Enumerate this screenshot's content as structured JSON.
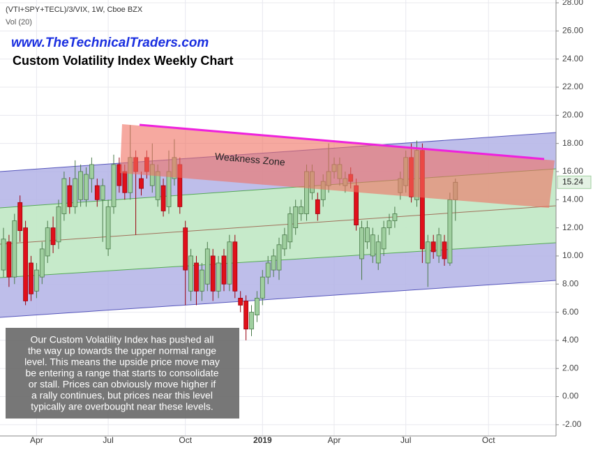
{
  "chart_data": {
    "type": "candlestick",
    "header": "(VTI+SPY+TECL)/3/VIX, 1W, Cboe BZX",
    "volume_label": "Vol (20)",
    "website": "www.TheTechnicalTraders.com",
    "title": "Custom Volatility Index Weekly Chart",
    "zone_label": "Weakness Zone",
    "note": [
      "Our Custom Volatility Index has pushed all",
      "the way up towards the upper normal range",
      "level.  This means the upside price move may",
      "be entering a range that starts to consolidate",
      "or stall.  Prices can obviously move higher if",
      "a rally continues, but prices near this level",
      "typically are overbought near these levels."
    ],
    "categories": [
      null,
      null,
      null,
      null,
      null,
      null,
      "Apr",
      null,
      null,
      null,
      null,
      null,
      null,
      null,
      null,
      null,
      null,
      null,
      null,
      "Jul",
      null,
      null,
      null,
      null,
      null,
      null,
      null,
      null,
      null,
      null,
      null,
      null,
      null,
      "Oct",
      null,
      null,
      null,
      null,
      null,
      null,
      null,
      null,
      null,
      null,
      null,
      null,
      null,
      "2019",
      null,
      null,
      null,
      null,
      null,
      null,
      null,
      null,
      null,
      null,
      null,
      null,
      "Apr",
      null,
      null,
      null,
      null,
      null,
      null,
      null,
      null,
      null,
      null,
      null,
      null,
      "Jul",
      null,
      null,
      null,
      null,
      null,
      null,
      null,
      null,
      null,
      null,
      null,
      null,
      null,
      null,
      "Oct"
    ],
    "series": {
      "open": [
        9,
        11,
        8.5,
        13.8,
        12,
        9.5,
        7.5,
        8.5,
        10,
        12,
        11,
        13,
        15,
        13.5,
        14,
        14,
        15.5,
        15,
        14,
        10.5,
        13.5,
        16.5,
        16,
        14.5,
        17,
        15.5,
        17,
        15,
        14,
        15,
        13.5,
        15.5,
        16.5,
        12,
        7.5,
        9.5,
        7.5,
        8,
        10,
        7.5,
        10,
        8,
        11,
        7,
        6.8,
        4.8,
        5.8,
        7,
        8.5,
        9,
        9,
        10.5,
        11,
        12,
        13,
        13,
        14.5,
        14,
        14,
        15,
        16,
        15.5,
        15,
        15.8,
        15,
        9.8,
        11,
        10,
        9.5,
        10.5,
        12,
        12.5,
        14.5,
        15,
        17,
        14,
        17.5,
        9.5,
        11,
        10,
        11,
        9.5,
        14,
        null,
        null,
        null,
        null,
        null,
        null
      ],
      "high": [
        12,
        11.5,
        13,
        14.3,
        12.5,
        10,
        9.5,
        11,
        12.5,
        12.8,
        14,
        16,
        15.6,
        16.8,
        16.5,
        16.3,
        17,
        15.5,
        15.5,
        14,
        17.2,
        17,
        16.5,
        19.3,
        17.5,
        16,
        17.5,
        18,
        16.5,
        15.5,
        17.5,
        18.3,
        17,
        12.5,
        10.5,
        10,
        9.5,
        11,
        10.5,
        10,
        10.5,
        11.5,
        11.5,
        7.5,
        7.2,
        6.5,
        7.5,
        9,
        10,
        10.5,
        11.3,
        12,
        13.5,
        14,
        14,
        16.5,
        16.5,
        14.5,
        15.8,
        18,
        17,
        17,
        16,
        16.3,
        15.5,
        12.5,
        12.5,
        12,
        11.5,
        12.5,
        13,
        13.5,
        16,
        17.5,
        18,
        18.2,
        18,
        11.5,
        11.5,
        12,
        11.5,
        14.5,
        15.5,
        null,
        null,
        null,
        null,
        null,
        null
      ],
      "low": [
        8.5,
        7.8,
        8,
        11,
        6.5,
        6.8,
        7,
        8,
        9.5,
        10.2,
        10.5,
        12.5,
        13,
        13,
        13.5,
        13.5,
        14.5,
        13.5,
        11,
        10,
        13,
        14.5,
        14,
        14,
        11.5,
        14.3,
        15.5,
        14.5,
        13.5,
        12.8,
        13,
        15,
        13,
        6.5,
        6.8,
        6.5,
        6.8,
        7.5,
        6.8,
        7,
        7.5,
        7.5,
        7,
        6,
        4,
        4.3,
        5.3,
        6.5,
        8,
        8.5,
        8.3,
        10,
        10.5,
        11.5,
        12.5,
        12.5,
        14,
        12.5,
        13.5,
        14.5,
        15.5,
        15,
        14.5,
        14.8,
        11.8,
        8.3,
        10.5,
        9.5,
        9,
        10,
        11.5,
        12,
        14,
        14.5,
        13.8,
        13.5,
        9.5,
        7.8,
        9.8,
        9.5,
        9.3,
        9.3,
        12.5,
        null,
        null,
        null,
        null,
        null,
        null
      ],
      "close": [
        11.2,
        8.5,
        12.5,
        11.8,
        6.8,
        7.3,
        9,
        10.5,
        12,
        10.8,
        13.5,
        15.5,
        13.5,
        15.5,
        16,
        15.8,
        16.5,
        14,
        15,
        13.5,
        16.5,
        15,
        14.5,
        17,
        16,
        14.8,
        16,
        16.5,
        16,
        13.2,
        16,
        17,
        13.5,
        9,
        10,
        7.5,
        9,
        10.5,
        7.5,
        9.5,
        8,
        11,
        7.5,
        6.5,
        4.8,
        6,
        7,
        8.5,
        9.5,
        10,
        10.8,
        11.5,
        13,
        13.5,
        13.5,
        16,
        16,
        13,
        15.3,
        16,
        16.5,
        16.5,
        15.5,
        15.3,
        12.2,
        12,
        12,
        11.5,
        11,
        12,
        12.5,
        13,
        15.5,
        17,
        14.2,
        17.5,
        10.5,
        11,
        10.3,
        11.5,
        9.8,
        14,
        15.24,
        null,
        null,
        null,
        null,
        null,
        null
      ]
    },
    "up_color": "#9fcf9f",
    "down_color": "#e0101a",
    "last_price": 15.24,
    "ylim": [
      -2.8,
      28.2
    ],
    "yticks": [
      {
        "value": 28,
        "label": "28.00"
      },
      {
        "value": 26,
        "label": "26.00"
      },
      {
        "value": 24,
        "label": "24.00"
      },
      {
        "value": 22,
        "label": "22.00"
      },
      {
        "value": 20,
        "label": "20.00"
      },
      {
        "value": 18,
        "label": "18.00"
      },
      {
        "value": 16,
        "label": "16.00"
      },
      {
        "value": 14,
        "label": "14.00"
      },
      {
        "value": 12,
        "label": "12.00"
      },
      {
        "value": 10,
        "label": "10.00"
      },
      {
        "value": 8,
        "label": "8.00"
      },
      {
        "value": 6,
        "label": "6.00"
      },
      {
        "value": 4,
        "label": "4.00"
      },
      {
        "value": 2,
        "label": "2.00"
      },
      {
        "value": 0,
        "label": "0.00"
      },
      {
        "value": -2,
        "label": "-2.00"
      }
    ],
    "grid": true
  }
}
